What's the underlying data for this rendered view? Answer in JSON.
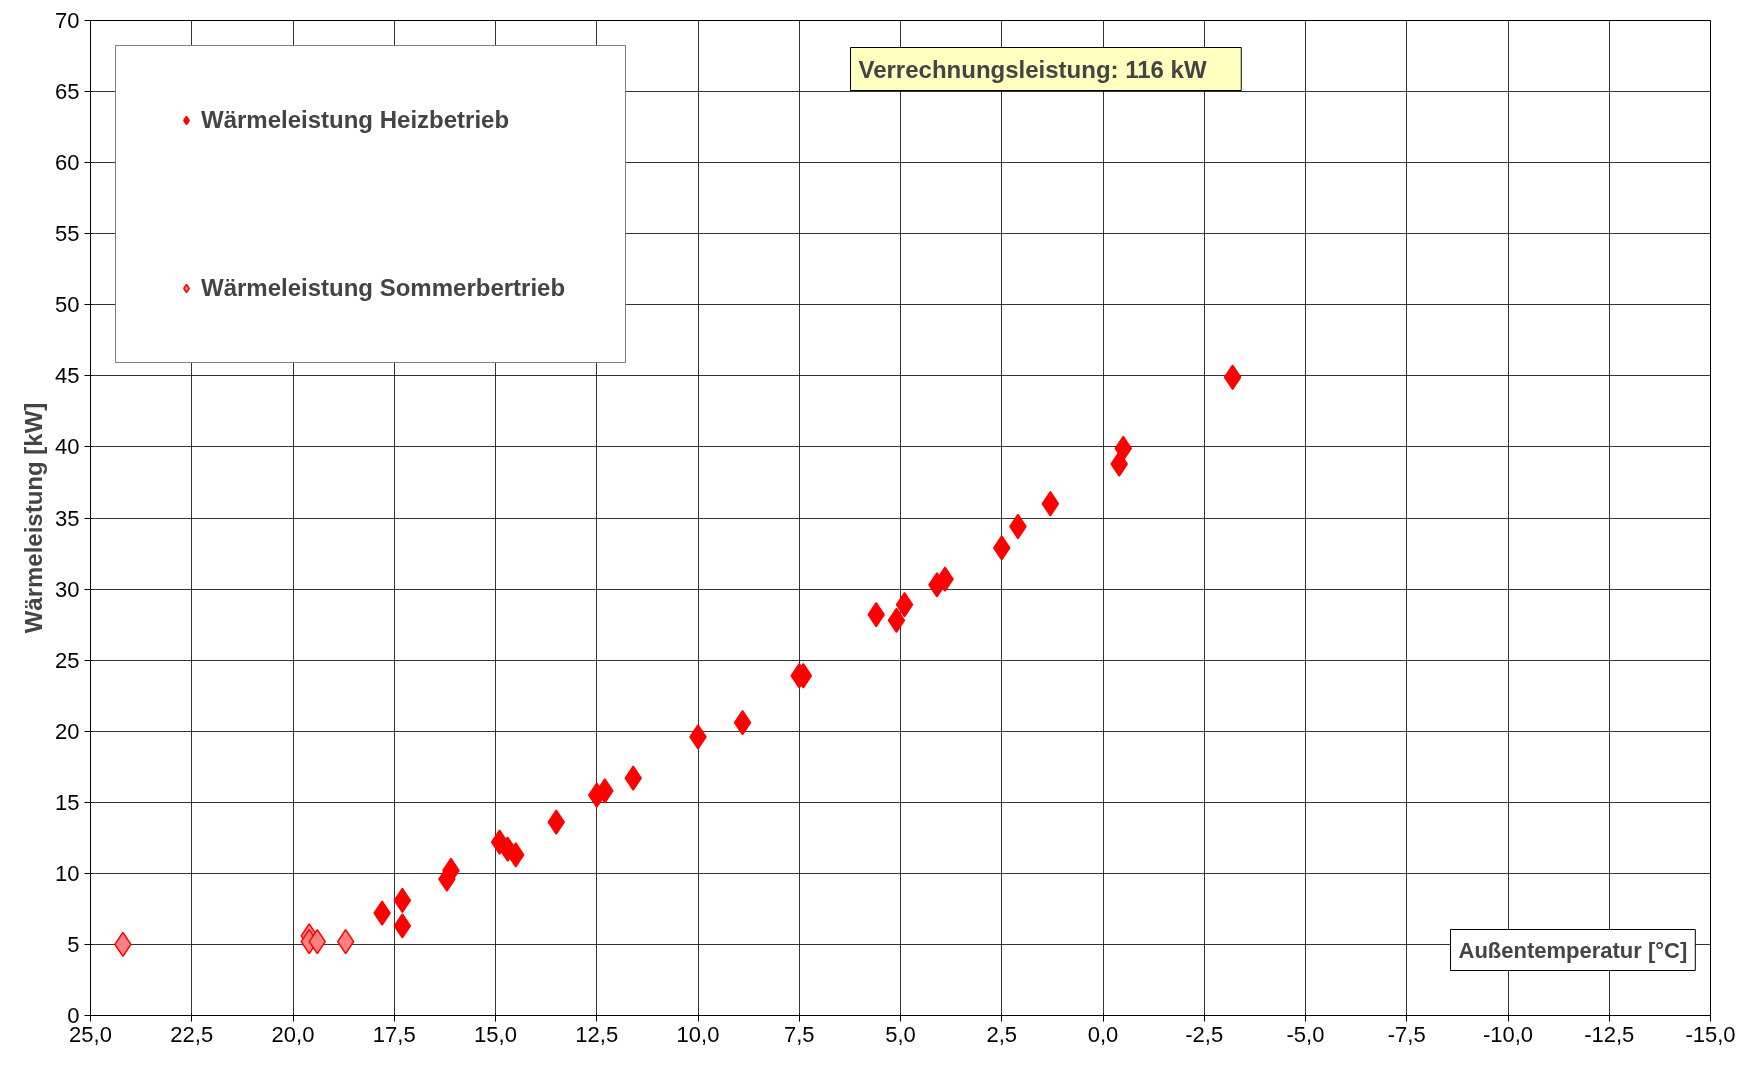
{
  "chart_data": {
    "type": "scatter",
    "xlabel": "Außentemperatur [°C]",
    "ylabel": "Wärmeleistung [kW]",
    "annotations": [
      "Verrechnungsleistung:    116  kW"
    ],
    "series": [
      {
        "name": "Wärmeleistung Heizbetrieb",
        "color": "#ff0000",
        "x": [
          17.8,
          17.3,
          17.3,
          16.2,
          16.1,
          14.9,
          14.7,
          14.5,
          13.5,
          12.5,
          12.3,
          11.6,
          10.0,
          8.9,
          7.5,
          7.4,
          5.6,
          5.1,
          4.9,
          4.1,
          3.9,
          2.5,
          2.1,
          1.3,
          -0.4,
          -0.5,
          -3.2
        ],
        "values": [
          7.2,
          6.3,
          8.1,
          9.6,
          10.2,
          12.2,
          11.7,
          11.3,
          13.6,
          15.5,
          15.8,
          16.7,
          19.6,
          20.6,
          23.9,
          23.9,
          28.2,
          27.8,
          28.9,
          30.3,
          30.7,
          32.9,
          34.4,
          36.0,
          38.8,
          39.9,
          44.9
        ]
      },
      {
        "name": "Wärmeleistung Sommerbertrieb",
        "color": "#ff8080",
        "x": [
          24.2,
          19.6,
          19.6,
          19.4,
          18.7
        ],
        "values": [
          5.0,
          5.6,
          5.2,
          5.2,
          5.2
        ]
      }
    ],
    "marker": "diamond",
    "xlim": [
      25,
      -15
    ],
    "xticks": [
      {
        "value": 25,
        "label": "25,0"
      },
      {
        "value": 22.5,
        "label": "22,5"
      },
      {
        "value": 20,
        "label": "20,0"
      },
      {
        "value": 17.5,
        "label": "17,5"
      },
      {
        "value": 15,
        "label": "15,0"
      },
      {
        "value": 12.5,
        "label": "12,5"
      },
      {
        "value": 10,
        "label": "10,0"
      },
      {
        "value": 7.5,
        "label": "7,5"
      },
      {
        "value": 5,
        "label": "5,0"
      },
      {
        "value": 2.5,
        "label": "2,5"
      },
      {
        "value": 0,
        "label": "0,0"
      },
      {
        "value": -2.5,
        "label": "-2,5"
      },
      {
        "value": -5,
        "label": "-5,0"
      },
      {
        "value": -7.5,
        "label": "-7,5"
      },
      {
        "value": -10,
        "label": "-10,0"
      },
      {
        "value": -12.5,
        "label": "-12,5"
      },
      {
        "value": -15,
        "label": "-15,0"
      }
    ],
    "ylim": [
      0,
      70
    ],
    "yticks": [
      0,
      5,
      10,
      15,
      20,
      25,
      30,
      35,
      40,
      45,
      50,
      55,
      60,
      65,
      70
    ],
    "grid": true,
    "legend": "top left"
  }
}
